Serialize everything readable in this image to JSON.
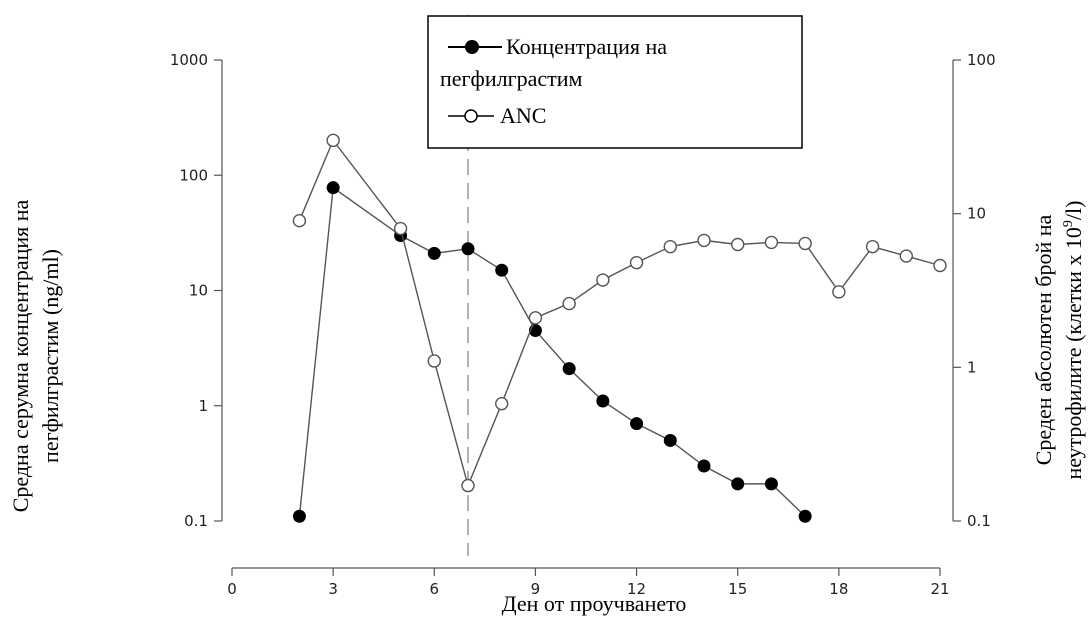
{
  "chart_data": {
    "type": "line",
    "xlabel": "Ден от проучването",
    "ylabel_left": [
      "Средна серумна концентрация на",
      "пегфилграстим (ng/ml)"
    ],
    "ylabel_right": [
      "Среден абсолютен брой на",
      "неутрофилите (клетки x 10",
      "9",
      "/l)"
    ],
    "xlim": [
      0,
      21
    ],
    "xticks": [
      0,
      3,
      6,
      9,
      12,
      15,
      18,
      21
    ],
    "xtick_labels": [
      "0",
      "3",
      "6",
      "9",
      "12",
      "15",
      "18",
      "21"
    ],
    "yleft": {
      "scale": "log",
      "lim": [
        0.1,
        1000
      ],
      "ticks": [
        0.1,
        1,
        10,
        100,
        1000
      ],
      "tick_labels": [
        "0.1",
        "1",
        "10",
        "100",
        "1000"
      ]
    },
    "yright": {
      "scale": "log",
      "lim": [
        0.1,
        100
      ],
      "ticks": [
        0.1,
        1,
        10,
        100
      ],
      "tick_labels": [
        "0.1",
        "1",
        "10",
        "100"
      ]
    },
    "reference_line": {
      "x": 7,
      "style": "dashed",
      "color": "#999999"
    },
    "legend": {
      "placement": "top-center",
      "entries": [
        {
          "label_lines": [
            "Концентрация на",
            "пегфилграстим"
          ],
          "marker": "filled-circle"
        },
        {
          "label_lines": [
            "ANC"
          ],
          "marker": "open-circle"
        }
      ]
    },
    "series": [
      {
        "name": "Концентрация на пегфилграстим",
        "axis": "left",
        "marker": "filled",
        "x": [
          2,
          3,
          5,
          6,
          7,
          8,
          9,
          10,
          11,
          12,
          13,
          14,
          15,
          16,
          17
        ],
        "y": [
          0.11,
          78,
          30,
          21,
          23,
          15,
          4.5,
          2.1,
          1.1,
          0.7,
          0.5,
          0.3,
          0.21,
          0.21,
          0.11
        ]
      },
      {
        "name": "ANC",
        "axis": "right",
        "marker": "open",
        "x": [
          2,
          3,
          5,
          6,
          7,
          8,
          9,
          10,
          11,
          12,
          13,
          14,
          15,
          16,
          17,
          18,
          19,
          20,
          21
        ],
        "y": [
          9,
          30,
          8,
          1.1,
          0.17,
          0.58,
          2.1,
          2.6,
          3.7,
          4.8,
          6.1,
          6.7,
          6.3,
          6.5,
          6.4,
          3.1,
          6.1,
          5.3,
          4.6
        ]
      }
    ],
    "colors": {
      "line": "#555555",
      "filled_marker": "#000000",
      "open_marker_fill": "#ffffff",
      "axis": "#555555",
      "ref_line": "#999999"
    }
  }
}
